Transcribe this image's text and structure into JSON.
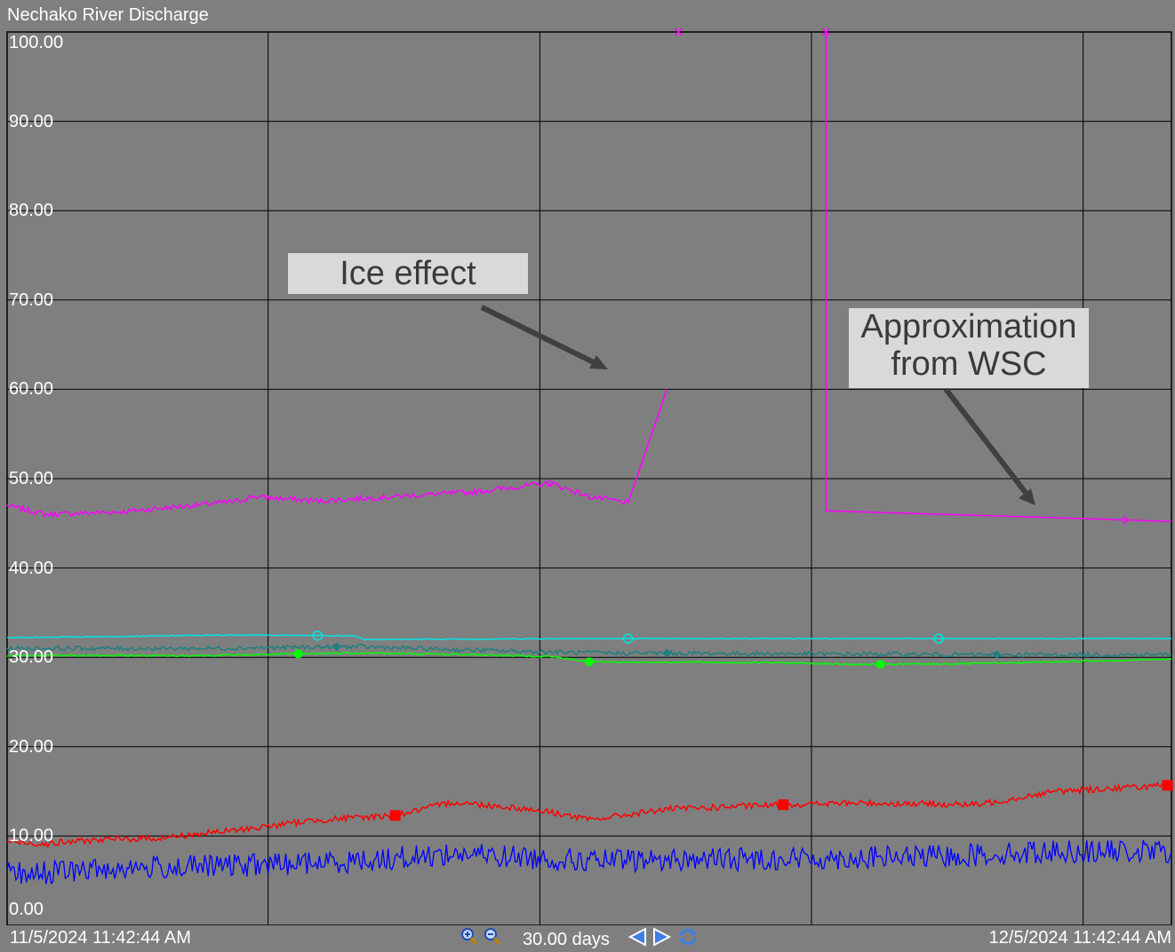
{
  "window": {
    "title": "Nechako River Discharge"
  },
  "footer": {
    "start_time": "11/5/2024 11:42:44 AM",
    "end_time": "12/5/2024 11:42:44 AM",
    "span_label": "30.00 days",
    "controls": [
      "zoom-in-icon",
      "zoom-out-icon",
      "scroll-back-icon",
      "scroll-forward-icon",
      "refresh-icon"
    ]
  },
  "annotations": {
    "ice_effect": "Ice effect",
    "approx_line1": "Approximation",
    "approx_line2": "from WSC"
  },
  "chart_data": {
    "type": "line",
    "title": "Nechako River Discharge",
    "xlabel": "",
    "ylabel": "",
    "x_range_days": [
      0,
      30
    ],
    "ylim": [
      0,
      100
    ],
    "y_ticks": [
      "100.00",
      "90.00",
      "80.00",
      "70.00",
      "60.00",
      "50.00",
      "40.00",
      "30.00",
      "20.00",
      "10.00",
      "0.00"
    ],
    "grid": true,
    "background": "#7f7f7f",
    "series": [
      {
        "color": "#ff00ff",
        "marker": "diamond-open",
        "x": [
          0,
          1,
          3,
          6,
          6.3,
          8,
          12,
          14,
          15,
          16,
          17,
          18,
          21,
          21.1
        ],
        "y": [
          47,
          46,
          46.3,
          47.5,
          48,
          47.5,
          48.5,
          49.5,
          48,
          47.3,
          60,
          100,
          null,
          100
        ],
        "note": "gap between day 16 and day 21 (ice effect)"
      },
      {
        "color": "#ff00ff",
        "marker": "diamond-open",
        "x": [
          21.1,
          21.1,
          28,
          30
        ],
        "y": [
          100,
          46.4,
          45.5,
          45.2
        ]
      },
      {
        "color": "#00e5e5",
        "marker": "circle-open",
        "x": [
          0,
          6,
          9,
          9.2,
          15,
          20,
          25,
          30
        ],
        "y": [
          32.2,
          32.5,
          32.4,
          32,
          32.1,
          32.1,
          32.1,
          32.1
        ]
      },
      {
        "color": "#1f7f7f",
        "marker": "diamond-filled",
        "x": [
          0,
          5,
          9,
          12,
          15,
          20,
          25,
          30
        ],
        "y": [
          31,
          31,
          31.2,
          30.8,
          30.5,
          30.4,
          30.3,
          30.3
        ]
      },
      {
        "color": "#00ff00",
        "marker": "circle-filled",
        "x": [
          0,
          5,
          9,
          12,
          14,
          15,
          20,
          22,
          25,
          30
        ],
        "y": [
          30.2,
          30.2,
          30.5,
          30.3,
          30.1,
          29.5,
          29.4,
          29.2,
          29.3,
          29.8
        ]
      },
      {
        "color": "#ff0000",
        "marker": "square-filled",
        "x": [
          0,
          1,
          2,
          4,
          6,
          8,
          10,
          11.5,
          13,
          14,
          15,
          17,
          20,
          22,
          25,
          27,
          30
        ],
        "y": [
          9.4,
          9.1,
          9.5,
          9.8,
          10.7,
          11.8,
          12.3,
          13.8,
          13.2,
          12.7,
          11.8,
          13,
          13.5,
          13.7,
          13.5,
          15,
          15.7
        ]
      },
      {
        "color": "#0000ff",
        "marker": "none",
        "x": [
          0,
          3,
          6,
          9,
          11.5,
          13,
          15,
          18,
          21,
          24,
          27,
          30
        ],
        "y": [
          5.7,
          6.4,
          6.7,
          7.2,
          8,
          7.7,
          7.2,
          7.4,
          7.5,
          7.7,
          8.3,
          8.2
        ]
      }
    ]
  }
}
